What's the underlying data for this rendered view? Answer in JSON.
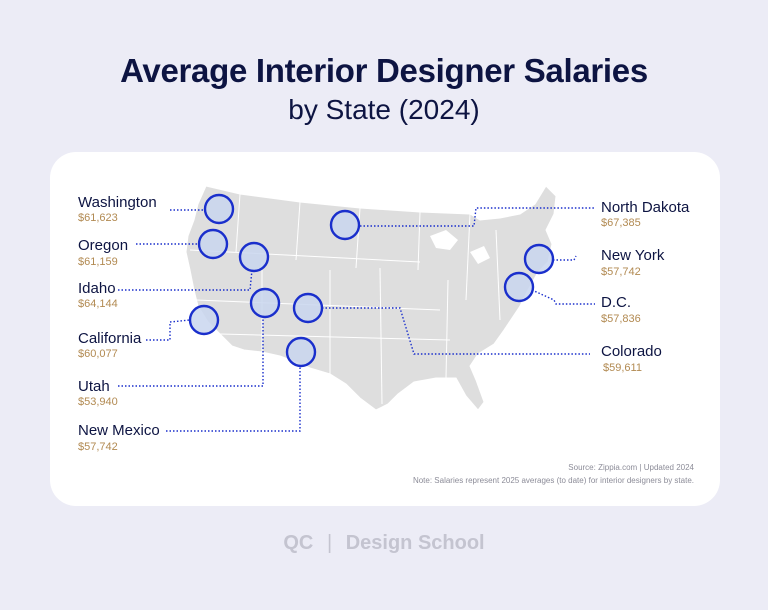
{
  "title": "Average Interior Designer Salaries",
  "subtitle": "by State (2024)",
  "states": [
    {
      "name": "Washington",
      "salary": "$61,623"
    },
    {
      "name": "Oregon",
      "salary": "$61,159"
    },
    {
      "name": "Idaho",
      "salary": "$64,144"
    },
    {
      "name": "California",
      "salary": "$60,077"
    },
    {
      "name": "Utah",
      "salary": "$53,940"
    },
    {
      "name": "New Mexico",
      "salary": "$57,742"
    },
    {
      "name": "North Dakota",
      "salary": "$67,385"
    },
    {
      "name": "New York",
      "salary": "$57,742"
    },
    {
      "name": "D.C.",
      "salary": "$57,836"
    },
    {
      "name": "Colorado",
      "salary": "$59,611"
    }
  ],
  "source": "Source: Zippia.com | Updated 2024",
  "note": "Note: Salaries represent 2025 averages (to date) for interior designers by state.",
  "footer": {
    "brand": "QC",
    "divider": "|",
    "school": "Design School"
  },
  "colors": {
    "title": "#0d1442",
    "salary": "#b28a52",
    "marker_ring": "#1a2fcc",
    "marker_fill": "#c9d6ef",
    "map_fill": "#dedede"
  }
}
